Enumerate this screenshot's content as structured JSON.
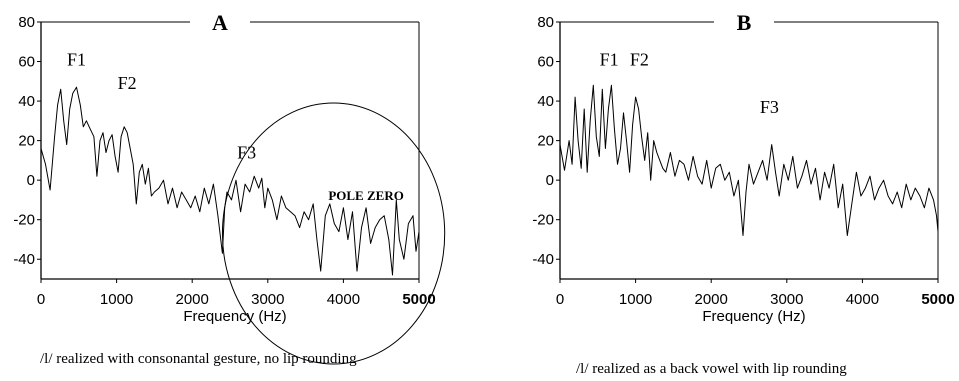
{
  "chart_data": [
    {
      "type": "line",
      "panel_label": "A",
      "xlabel": "Frequency (Hz)",
      "xlim": [
        0,
        5000
      ],
      "ylim": [
        -50,
        80
      ],
      "x_ticks": [
        "0",
        "1000",
        "2000",
        "3000",
        "4000",
        "5000"
      ],
      "y_ticks": [
        "80",
        "60",
        "40",
        "20",
        "0",
        "-20",
        "-40"
      ],
      "formant_labels": [
        {
          "text": "F1",
          "x": 470,
          "y": 58
        },
        {
          "text": "F2",
          "x": 1140,
          "y": 46
        },
        {
          "text": "F3",
          "x": 2720,
          "y": 11
        }
      ],
      "annotation": {
        "text": "POLE ZERO",
        "x": 4300,
        "y": -10
      },
      "circle_region": {
        "cx": 3870,
        "cy": -27,
        "rx": 1470,
        "ry": 66
      },
      "caption": "/l/ realized with consonantal gesture, no lip rounding",
      "series": [
        {
          "x": [
            0,
            60,
            120,
            180,
            220,
            260,
            300,
            340,
            380,
            420,
            470,
            520,
            560,
            600,
            650,
            700,
            740,
            780,
            820,
            860,
            900,
            940,
            980,
            1020,
            1060,
            1100,
            1140,
            1180,
            1220,
            1260,
            1300,
            1340,
            1380,
            1420,
            1460,
            1500,
            1560,
            1620,
            1680,
            1740,
            1800,
            1860,
            1920,
            1980,
            2040,
            2100,
            2160,
            2220,
            2280,
            2340,
            2400,
            2430,
            2460,
            2520,
            2580,
            2640,
            2700,
            2760,
            2820,
            2880,
            2920,
            2960,
            3000,
            3060,
            3120,
            3180,
            3240,
            3300,
            3360,
            3420,
            3480,
            3540,
            3600,
            3650,
            3700,
            3760,
            3820,
            3880,
            3940,
            4000,
            4060,
            4120,
            4180,
            4240,
            4300,
            4360,
            4420,
            4480,
            4540,
            4600,
            4650,
            4700,
            4740,
            4800,
            4860,
            4920,
            4960,
            5000
          ],
          "y": [
            16,
            8,
            -5,
            22,
            38,
            46,
            30,
            18,
            36,
            44,
            47,
            38,
            27,
            30,
            26,
            22,
            2,
            20,
            24,
            14,
            20,
            23,
            12,
            4,
            22,
            27,
            24,
            16,
            8,
            -12,
            4,
            8,
            -2,
            6,
            -8,
            -6,
            -4,
            0,
            -12,
            -4,
            -14,
            -6,
            -10,
            -14,
            -8,
            -16,
            -4,
            -12,
            -2,
            -18,
            -37,
            -14,
            -6,
            -10,
            0,
            -16,
            -2,
            -6,
            2,
            -4,
            1,
            -14,
            -4,
            -10,
            -20,
            -8,
            -14,
            -16,
            -18,
            -24,
            -16,
            -20,
            -12,
            -30,
            -46,
            -18,
            -12,
            -22,
            -26,
            -14,
            -30,
            -16,
            -46,
            -24,
            -14,
            -32,
            -24,
            -20,
            -18,
            -30,
            -48,
            -10,
            -30,
            -40,
            -22,
            -18,
            -36,
            -26
          ]
        }
      ]
    },
    {
      "type": "line",
      "panel_label": "B",
      "xlabel": "Frequency (Hz)",
      "xlim": [
        0,
        5000
      ],
      "ylim": [
        -50,
        80
      ],
      "x_ticks": [
        "0",
        "1000",
        "2000",
        "3000",
        "4000",
        "5000"
      ],
      "y_ticks": [
        "80",
        "60",
        "40",
        "20",
        "0",
        "-20",
        "-40"
      ],
      "formant_labels": [
        {
          "text": "F1",
          "x": 650,
          "y": 58
        },
        {
          "text": "F2",
          "x": 1050,
          "y": 58
        },
        {
          "text": "F3",
          "x": 2770,
          "y": 34
        }
      ],
      "caption": "/l/ realized as a back vowel with lip rounding",
      "series": [
        {
          "x": [
            0,
            60,
            120,
            160,
            200,
            240,
            280,
            320,
            360,
            400,
            440,
            480,
            520,
            560,
            600,
            640,
            680,
            720,
            760,
            800,
            840,
            880,
            920,
            960,
            1000,
            1040,
            1080,
            1120,
            1160,
            1200,
            1240,
            1280,
            1320,
            1360,
            1400,
            1460,
            1520,
            1580,
            1640,
            1700,
            1760,
            1820,
            1880,
            1940,
            2000,
            2060,
            2120,
            2180,
            2240,
            2300,
            2360,
            2420,
            2460,
            2500,
            2560,
            2620,
            2680,
            2740,
            2800,
            2850,
            2900,
            2960,
            3020,
            3080,
            3140,
            3200,
            3260,
            3320,
            3380,
            3440,
            3500,
            3560,
            3620,
            3680,
            3740,
            3800,
            3860,
            3920,
            3980,
            4040,
            4100,
            4160,
            4220,
            4280,
            4340,
            4400,
            4460,
            4520,
            4580,
            4640,
            4700,
            4760,
            4820,
            4880,
            4940,
            4980,
            5000
          ],
          "y": [
            18,
            5,
            20,
            8,
            42,
            20,
            6,
            36,
            4,
            30,
            48,
            22,
            12,
            46,
            16,
            36,
            48,
            26,
            8,
            16,
            34,
            20,
            4,
            28,
            42,
            36,
            22,
            10,
            24,
            0,
            20,
            14,
            10,
            6,
            4,
            14,
            2,
            10,
            8,
            0,
            12,
            2,
            -2,
            10,
            -4,
            6,
            8,
            0,
            4,
            -8,
            0,
            -28,
            -6,
            8,
            -2,
            4,
            10,
            0,
            18,
            4,
            -8,
            8,
            0,
            12,
            -4,
            2,
            10,
            -2,
            6,
            -10,
            4,
            -4,
            8,
            -14,
            -2,
            -28,
            -12,
            4,
            -8,
            -4,
            2,
            -10,
            -4,
            0,
            -8,
            -12,
            -6,
            -14,
            -2,
            -10,
            -4,
            -8,
            -14,
            -4,
            -10,
            -18,
            -26
          ]
        }
      ]
    }
  ]
}
